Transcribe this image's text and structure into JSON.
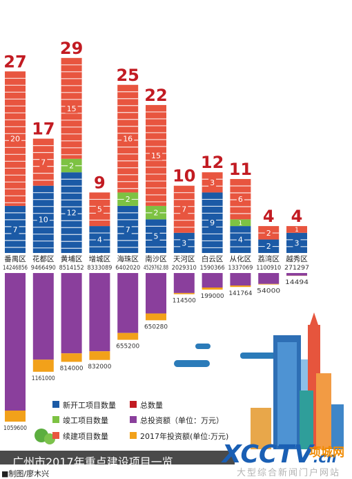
{
  "colors": {
    "new_start": "#1b5aa6",
    "completed": "#7dc243",
    "continued": "#e8553f",
    "total_count": "#c21b22",
    "total_investment": "#8a3f9c",
    "investment_2017": "#f2a11a",
    "banner_bg": "#4a4a4a",
    "banner_text": "#ffffff"
  },
  "chart_data": {
    "type": "bar",
    "categories": [
      "番禺区",
      "花都区",
      "黄埔区",
      "增城区",
      "海珠区",
      "南沙区",
      "天河区",
      "白云区",
      "从化区",
      "荔湾区",
      "越秀区"
    ],
    "count_series": [
      {
        "name": "新开工项目数量",
        "values": [
          7,
          10,
          12,
          4,
          7,
          5,
          3,
          9,
          4,
          2,
          3
        ]
      },
      {
        "name": "竣工项目数量",
        "values": [
          0,
          0,
          2,
          0,
          2,
          2,
          0,
          0,
          1,
          0,
          0
        ]
      },
      {
        "name": "续建项目数量",
        "values": [
          20,
          7,
          15,
          5,
          16,
          15,
          7,
          3,
          6,
          2,
          1
        ]
      }
    ],
    "totals": {
      "name": "总数量",
      "values": [
        27,
        17,
        29,
        9,
        25,
        22,
        10,
        12,
        11,
        4,
        4
      ]
    },
    "total_investment": {
      "name": "总投资额（单位：万元）",
      "values": [
        14246856,
        9466490,
        8514152,
        8333089,
        6402020,
        4529762.88,
        2029310,
        1590366,
        1337069,
        1100910,
        271297
      ]
    },
    "investment_2017": {
      "name": "2017年投资额(单位:万元)",
      "values": [
        1059600,
        1161000,
        814000,
        832000,
        655200,
        650280,
        114500,
        199000,
        141764,
        54000,
        14494
      ]
    },
    "total_investment_labels": [
      "14246856",
      "9466490",
      "8514152",
      "8333089",
      "6402020",
      "4529762.88",
      "2029310",
      "1590366",
      "1337069",
      "1100910",
      "271297"
    ],
    "investment_2017_labels": [
      "1059600",
      "1161000",
      "814000",
      "832000",
      "655200",
      "650280",
      "114500",
      "199000",
      "141764",
      "54000",
      "14494"
    ]
  },
  "legend": {
    "new_start": "新开工项目数量",
    "total_count": "总数量",
    "completed": "竣工项目数量",
    "total_investment": "总投资额（单位：万元）",
    "continued": "续建项目数量",
    "investment_2017": "2017年投资额(单位:万元)"
  },
  "banner": {
    "title": "广州市2017年重点建设项目一览"
  },
  "credit": "■制图/廖木兴",
  "watermark": {
    "logo": "XCCTV",
    "domain": ".cn",
    "site": "项城网",
    "slogan": "大型综合新闻门户网站"
  }
}
